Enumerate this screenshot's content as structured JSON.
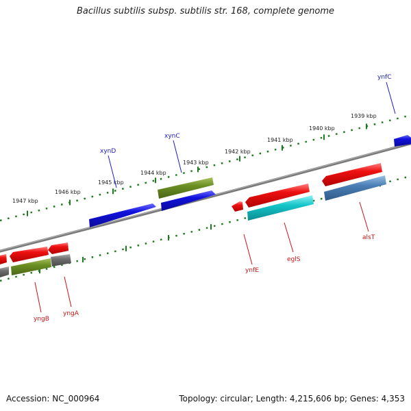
{
  "title": "Bacillus subtilis subsp. subtilis str. 168, complete genome",
  "footer": {
    "accession": "Accession: NC_000964",
    "summary": "Topology: circular; Length: 4,215,606 bp; Genes: 4,353"
  },
  "colors": {
    "backbone": "#8a8a8a",
    "ticks": "#1e7a1e",
    "label_forward": "#1a1acc",
    "label_reverse": "#cc1111",
    "cds_red": "#ee1111",
    "cds_blue": "#1111dd",
    "cds_olive": "#6b8e23",
    "cds_cyan": "#14c4c8",
    "cds_steel": "#4a7fb5",
    "cds_gray": "#6e6e6e"
  },
  "chart_data": {
    "type": "genome-map",
    "visible_range_kbp": [
      1938.5,
      1948
    ],
    "tick_labels": [
      {
        "kbp": 1947,
        "label": "1947 kbp"
      },
      {
        "kbp": 1946,
        "label": "1946 kbp"
      },
      {
        "kbp": 1945,
        "label": "1945 kbp"
      },
      {
        "kbp": 1944,
        "label": "1944 kbp"
      },
      {
        "kbp": 1943,
        "label": "1943 kbp"
      },
      {
        "kbp": 1942,
        "label": "1942 kbp"
      },
      {
        "kbp": 1941,
        "label": "1941 kbp"
      },
      {
        "kbp": 1940,
        "label": "1940 kbp"
      },
      {
        "kbp": 1939,
        "label": "1939 kbp"
      }
    ],
    "labeled_genes": [
      {
        "name": "ynfC",
        "strand": "+"
      },
      {
        "name": "xynC",
        "strand": "+"
      },
      {
        "name": "xynD",
        "strand": "+"
      },
      {
        "name": "alsT",
        "strand": "-"
      },
      {
        "name": "eglS",
        "strand": "-"
      },
      {
        "name": "ynfE",
        "strand": "-"
      },
      {
        "name": "yngA",
        "strand": "-"
      },
      {
        "name": "yngB",
        "strand": "-"
      }
    ]
  }
}
